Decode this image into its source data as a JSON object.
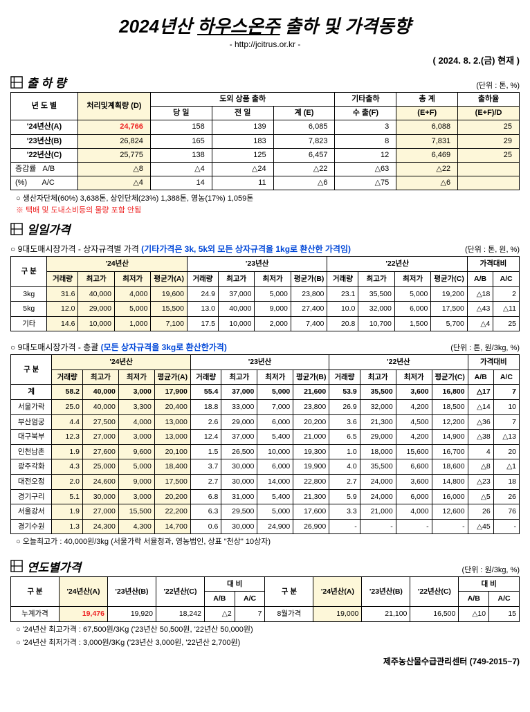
{
  "header": {
    "title_pre": "2024년산 ",
    "title_emph": "하우스온주",
    "title_post": " 출하 및 가격동향",
    "subtitle": "- http://jcitrus.or.kr -",
    "asof": "( 2024. 8. 2.(금) 현재 )"
  },
  "shipment": {
    "title": "출 하 량",
    "unit": "(단위 : 톤, %)",
    "cols": {
      "year": "년 도 별",
      "plan": "처리및계획량 (D)",
      "ship_out": "도외 상품 출하",
      "today": "당 일",
      "yesterday": "전 일",
      "sum_e": "계 (E)",
      "other": "기타출하",
      "export_f": "수 출(F)",
      "total": "총 계",
      "ef": "(E+F)",
      "rate": "출하율",
      "efd": "(E+F)/D"
    },
    "rows": [
      {
        "label": "'24년산(A)",
        "plan": "24,766",
        "plan_red": true,
        "today": "158",
        "yest": "139",
        "sumE": "6,085",
        "export": "3",
        "total": "6,088",
        "rate": "25"
      },
      {
        "label": "'23년산(B)",
        "plan": "26,824",
        "today": "165",
        "yest": "183",
        "sumE": "7,823",
        "export": "8",
        "total": "7,831",
        "rate": "29"
      },
      {
        "label": "'22년산(C)",
        "plan": "25,775",
        "today": "138",
        "yest": "125",
        "sumE": "6,457",
        "export": "12",
        "total": "6,469",
        "rate": "25"
      }
    ],
    "delta": [
      {
        "l1": "증감률",
        "l2": "A/B",
        "plan": "△8",
        "today": "△4",
        "yest": "△24",
        "sumE": "△22",
        "export": "△63",
        "total": "△22",
        "rate": ""
      },
      {
        "l1": "(%)",
        "l2": "A/C",
        "plan": "△4",
        "today": "14",
        "yest": "11",
        "sumE": "△6",
        "export": "△75",
        "total": "△6",
        "rate": ""
      }
    ],
    "note1": "○ 생산자단체(60%) 3,638톤, 상인단체(23%) 1,388톤, 영농(17%) 1,059톤",
    "note2": "※ 택배 및 도내소비등의 물량 포함 안됨"
  },
  "daily": {
    "title": "일일가격",
    "cap1_pre": "○ 9대도매시장가격 - 상자규격별 가격 ",
    "cap1_blue": "(기타가격은 3k, 5k외 모든 상자규격을 1kg로 환산한 가격임)",
    "unit1": "(단위 : 톤, 원, %)",
    "head": {
      "gubun": "구 분",
      "y24": "'24년산",
      "y23": "'23년산",
      "y22": "'22년산",
      "cmp": "가격대비",
      "vol": "거래량",
      "hi": "최고가",
      "lo": "최저가",
      "avgA": "평균가(A)",
      "avgB": "평균가(B)",
      "avgC": "평균가(C)",
      "ab": "A/B",
      "ac": "A/C"
    },
    "box_rows": [
      {
        "label": "3kg",
        "v24": [
          "31.6",
          "40,000",
          "4,000",
          "19,600"
        ],
        "v23": [
          "24.9",
          "37,000",
          "5,000",
          "23,800"
        ],
        "v22": [
          "23.1",
          "35,500",
          "5,000",
          "19,200"
        ],
        "cmp": [
          "△18",
          "2"
        ]
      },
      {
        "label": "5kg",
        "v24": [
          "12.0",
          "29,000",
          "5,000",
          "15,500"
        ],
        "v23": [
          "13.0",
          "40,000",
          "9,000",
          "27,400"
        ],
        "v22": [
          "10.0",
          "32,000",
          "6,000",
          "17,500"
        ],
        "cmp": [
          "△43",
          "△11"
        ]
      },
      {
        "label": "기타",
        "v24": [
          "14.6",
          "10,000",
          "1,000",
          "7,100"
        ],
        "v23": [
          "17.5",
          "10,000",
          "2,000",
          "7,400"
        ],
        "v22": [
          "20.8",
          "10,700",
          "1,500",
          "5,700"
        ],
        "cmp": [
          "△4",
          "25"
        ]
      }
    ],
    "cap2_pre": "○ 9대도매시장가격 - 총괄 ",
    "cap2_blue": "(모든 상자규격을 3kg로 환산한가격)",
    "unit2": "(단위 : 톤, 원/3kg, %)",
    "total_rows": [
      {
        "label": "계",
        "bold": true,
        "v24": [
          "58.2",
          "40,000",
          "3,000",
          "17,900"
        ],
        "v23": [
          "55.4",
          "37,000",
          "5,000",
          "21,600"
        ],
        "v22": [
          "53.9",
          "35,500",
          "3,600",
          "16,800"
        ],
        "cmp": [
          "△17",
          "7"
        ]
      },
      {
        "label": "서울가락",
        "v24": [
          "25.0",
          "40,000",
          "3,300",
          "20,400"
        ],
        "v23": [
          "18.8",
          "33,000",
          "7,000",
          "23,800"
        ],
        "v22": [
          "26.9",
          "32,000",
          "4,200",
          "18,500"
        ],
        "cmp": [
          "△14",
          "10"
        ]
      },
      {
        "label": "부산엄궁",
        "v24": [
          "4.4",
          "27,500",
          "4,000",
          "13,000"
        ],
        "v23": [
          "2.6",
          "29,000",
          "6,000",
          "20,200"
        ],
        "v22": [
          "3.6",
          "21,300",
          "4,500",
          "12,200"
        ],
        "cmp": [
          "△36",
          "7"
        ]
      },
      {
        "label": "대구북부",
        "v24": [
          "12.3",
          "27,000",
          "3,000",
          "13,000"
        ],
        "v23": [
          "12.4",
          "37,000",
          "5,400",
          "21,000"
        ],
        "v22": [
          "6.5",
          "29,000",
          "4,200",
          "14,900"
        ],
        "cmp": [
          "△38",
          "△13"
        ]
      },
      {
        "label": "인천남촌",
        "v24": [
          "1.9",
          "27,600",
          "9,600",
          "20,100"
        ],
        "v23": [
          "1.5",
          "26,500",
          "10,000",
          "19,300"
        ],
        "v22": [
          "1.0",
          "18,000",
          "15,600",
          "16,700"
        ],
        "cmp": [
          "4",
          "20"
        ]
      },
      {
        "label": "광주각화",
        "v24": [
          "4.3",
          "25,000",
          "5,000",
          "18,400"
        ],
        "v23": [
          "3.7",
          "30,000",
          "6,000",
          "19,900"
        ],
        "v22": [
          "4.0",
          "35,500",
          "6,600",
          "18,600"
        ],
        "cmp": [
          "△8",
          "△1"
        ]
      },
      {
        "label": "대전오정",
        "v24": [
          "2.0",
          "24,600",
          "9,000",
          "17,500"
        ],
        "v23": [
          "2.7",
          "30,000",
          "14,000",
          "22,800"
        ],
        "v22": [
          "2.7",
          "24,000",
          "3,600",
          "14,800"
        ],
        "cmp": [
          "△23",
          "18"
        ]
      },
      {
        "label": "경기구리",
        "v24": [
          "5.1",
          "30,000",
          "3,000",
          "20,200"
        ],
        "v23": [
          "6.8",
          "31,000",
          "5,400",
          "21,300"
        ],
        "v22": [
          "5.9",
          "24,000",
          "6,000",
          "16,000"
        ],
        "cmp": [
          "△5",
          "26"
        ]
      },
      {
        "label": "서울강서",
        "v24": [
          "1.9",
          "27,000",
          "15,500",
          "22,200"
        ],
        "v23": [
          "6.3",
          "29,500",
          "5,000",
          "17,600"
        ],
        "v22": [
          "3.3",
          "21,000",
          "4,000",
          "12,600"
        ],
        "cmp": [
          "26",
          "76"
        ]
      },
      {
        "label": "경기수원",
        "v24": [
          "1.3",
          "24,300",
          "4,300",
          "14,700"
        ],
        "v23": [
          "0.6",
          "30,000",
          "24,900",
          "26,900"
        ],
        "v22": [
          "-",
          "-",
          "-",
          "-"
        ],
        "cmp": [
          "△45",
          "-"
        ]
      }
    ],
    "today_hi": "○ 오늘최고가 : 40,000원/3kg (서울가락 서율청과, 영농법인, 상표 \"천상\" 10상자)"
  },
  "yearly": {
    "title": "연도별가격",
    "unit": "(단위 : 원/3kg, %)",
    "head": {
      "gubun": "구 분",
      "y24": "'24년산(A)",
      "y23": "'23년산(B)",
      "y22": "'22년산(C)",
      "cmp": "대 비",
      "ab": "A/B",
      "ac": "A/C"
    },
    "row1": {
      "l": "누계가격",
      "a": "19,476",
      "b": "19,920",
      "c": "18,242",
      "ab": "△2",
      "ac": "7"
    },
    "row2": {
      "l": "8월가격",
      "a": "19,000",
      "b": "21,100",
      "c": "16,500",
      "ab": "△10",
      "ac": "15"
    },
    "note1": "○ '24년산 최고가격 : 67,500원/3Kg ('23년산 50,500원, '22년산 50,000원)",
    "note2": "○ '24년산 최저가격 :  3,000원/3Kg ('23년산  3,000원, '22년산 2,700원)"
  },
  "footer": "제주농산물수급관리센터 (749-2015~7)"
}
